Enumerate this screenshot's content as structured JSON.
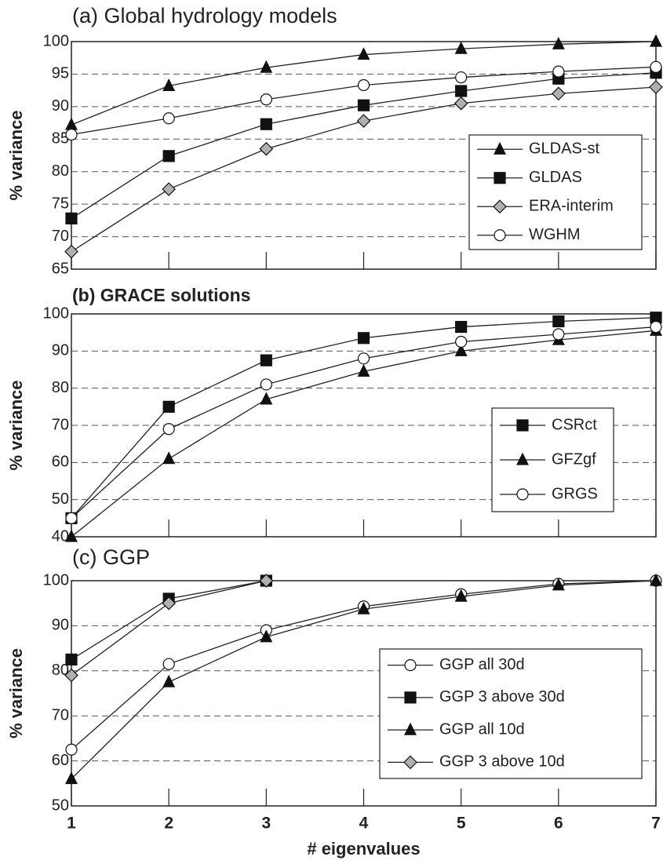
{
  "chart_data": [
    {
      "type": "line",
      "title": "(a) Global hydrology models",
      "ylabel": "% variance",
      "x": [
        1,
        2,
        3,
        4,
        5,
        6,
        7
      ],
      "xlim": [
        1,
        7
      ],
      "xticks": [
        1,
        2,
        3,
        4,
        5,
        6,
        7
      ],
      "xtick_labels": false,
      "ylim": [
        65,
        100
      ],
      "yticks": [
        65,
        70,
        75,
        80,
        85,
        90,
        95,
        100
      ],
      "grid": true,
      "legend": "center right",
      "series": [
        {
          "name": "GLDAS-st",
          "marker": "triangle",
          "color": "#111111",
          "values": [
            87.2,
            93.2,
            96,
            98,
            98.9,
            99.6,
            100
          ]
        },
        {
          "name": "GLDAS",
          "marker": "square",
          "color": "#111111",
          "values": [
            72.8,
            82.4,
            87.3,
            90.2,
            92.4,
            94.3,
            95.2
          ]
        },
        {
          "name": "ERA-interim",
          "marker": "diamond",
          "color": "#b0b0b0",
          "values": [
            67.7,
            77.3,
            83.5,
            87.8,
            90.5,
            92,
            93
          ]
        },
        {
          "name": "WGHM",
          "marker": "circle",
          "color": "#ffffff",
          "values": [
            85.7,
            88.2,
            91.1,
            93.3,
            94.5,
            95.4,
            96.1
          ]
        }
      ]
    },
    {
      "type": "line",
      "title": "(b) GRACE solutions",
      "ylabel": "% variance",
      "x": [
        1,
        2,
        3,
        4,
        5,
        6,
        7
      ],
      "xlim": [
        1,
        7
      ],
      "xticks": [
        1,
        2,
        3,
        4,
        5,
        6,
        7
      ],
      "xtick_labels": false,
      "ylim": [
        40,
        100
      ],
      "yticks": [
        40,
        50,
        60,
        70,
        80,
        90,
        100
      ],
      "grid": true,
      "legend": "center right",
      "series": [
        {
          "name": "CSRct",
          "marker": "square",
          "color": "#111111",
          "values": [
            45,
            75,
            87.5,
            93.5,
            96.5,
            98,
            99
          ]
        },
        {
          "name": "GFZgf",
          "marker": "triangle",
          "color": "#111111",
          "values": [
            40,
            61,
            77,
            84.5,
            90,
            93,
            95.5
          ]
        },
        {
          "name": "GRGS",
          "marker": "circle",
          "color": "#ffffff",
          "values": [
            45,
            69,
            81,
            88,
            92.5,
            94.5,
            96.5
          ]
        }
      ]
    },
    {
      "type": "line",
      "title": "(c) GGP",
      "ylabel": "% variance",
      "xlabel": "# eigenvalues",
      "x": [
        1,
        2,
        3,
        4,
        5,
        6,
        7
      ],
      "xlim": [
        1,
        7
      ],
      "xticks": [
        1,
        2,
        3,
        4,
        5,
        6,
        7
      ],
      "xtick_labels": true,
      "ylim": [
        50,
        100
      ],
      "yticks": [
        50,
        60,
        70,
        80,
        90,
        100
      ],
      "grid": true,
      "legend": "lower right",
      "series": [
        {
          "name": "GGP all 30d",
          "marker": "circle",
          "color": "#ffffff",
          "values": [
            62.5,
            81.5,
            89,
            94.3,
            97,
            99.3,
            100
          ]
        },
        {
          "name": "GGP 3 above 30d",
          "marker": "square",
          "color": "#111111",
          "values": [
            82.5,
            96,
            100,
            null,
            null,
            null,
            null
          ]
        },
        {
          "name": "GGP all 10d",
          "marker": "triangle",
          "color": "#111111",
          "values": [
            56,
            77.5,
            87.5,
            93.7,
            96.5,
            99,
            100
          ]
        },
        {
          "name": "GGP 3 above 10d",
          "marker": "diamond",
          "color": "#b0b0b0",
          "values": [
            79,
            95,
            100,
            null,
            null,
            null,
            null
          ]
        }
      ]
    }
  ]
}
